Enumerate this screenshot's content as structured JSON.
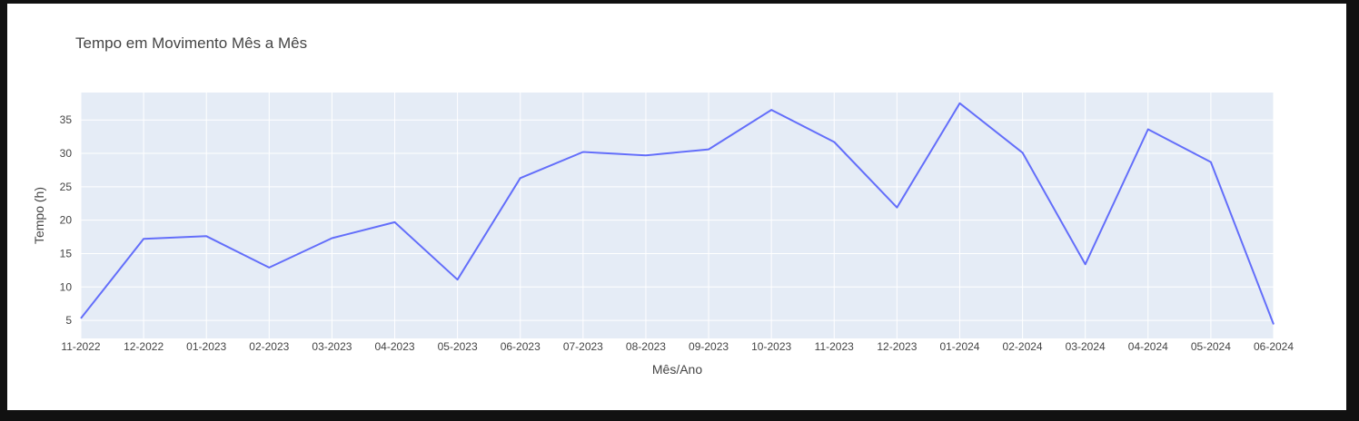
{
  "chart_data": {
    "type": "line",
    "title": "Tempo em Movimento Mês a Mês",
    "xlabel": "Mês/Ano",
    "ylabel": "Tempo (h)",
    "categories": [
      "11-2022",
      "12-2022",
      "01-2023",
      "02-2023",
      "03-2023",
      "04-2023",
      "05-2023",
      "06-2023",
      "07-2023",
      "08-2023",
      "09-2023",
      "10-2023",
      "11-2023",
      "12-2023",
      "01-2024",
      "02-2024",
      "03-2024",
      "04-2024",
      "05-2024",
      "06-2024"
    ],
    "series": [
      {
        "values": [
          5.3,
          17.2,
          17.6,
          12.9,
          17.3,
          19.7,
          11.1,
          26.3,
          30.2,
          29.7,
          30.6,
          36.5,
          31.7,
          21.9,
          37.5,
          30.1,
          13.4,
          33.6,
          28.7,
          4.4
        ]
      }
    ],
    "yticks": [
      5,
      10,
      15,
      20,
      25,
      30,
      35
    ],
    "ylim": [
      2.3,
      39.1
    ],
    "grid": true,
    "legend": "none",
    "colors": {
      "line": "#636efa",
      "plot_background": "#e5ecf6",
      "grid": "#ffffff"
    }
  }
}
